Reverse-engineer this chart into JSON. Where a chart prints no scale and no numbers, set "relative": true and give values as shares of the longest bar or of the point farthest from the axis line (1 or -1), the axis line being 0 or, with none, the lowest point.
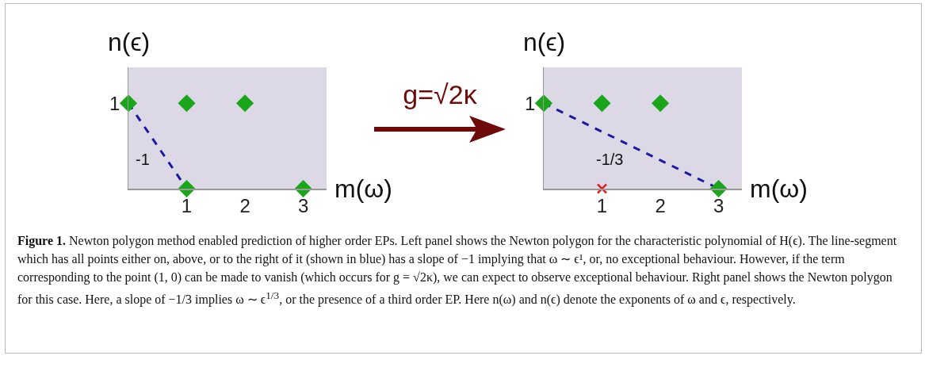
{
  "chart_data": [
    {
      "type": "scatter",
      "xlabel": "m(ω)",
      "ylabel": "n(ϵ)",
      "xlim": [
        0,
        3.4
      ],
      "relative": true,
      "xticks": [
        1,
        2,
        3
      ],
      "grid": false,
      "series": [
        {
          "type": "line",
          "x": [
            0,
            1
          ],
          "values": [
            1,
            0
          ],
          "color": "#1a1aa0",
          "line_style": "dashed",
          "marker": "none"
        },
        {
          "type": "scatter",
          "x": [
            0,
            1,
            2,
            1,
            3
          ],
          "values": [
            1,
            1,
            1,
            0,
            0
          ],
          "color": "#1aa51a",
          "marker": "diamond"
        }
      ],
      "annotations": [
        "1",
        "-1"
      ]
    },
    {
      "type": "other",
      "annotations": [
        "g=√2κ"
      ]
    },
    {
      "type": "scatter",
      "xlabel": "m(ω)",
      "ylabel": "n(ϵ)",
      "xlim": [
        0,
        3.4
      ],
      "relative": true,
      "xticks": [
        1,
        2,
        3
      ],
      "grid": false,
      "series": [
        {
          "type": "line",
          "x": [
            0,
            3
          ],
          "values": [
            1,
            0
          ],
          "color": "#1a1aa0",
          "line_style": "dashed",
          "marker": "none"
        },
        {
          "type": "scatter",
          "x": [
            0,
            1,
            2,
            3
          ],
          "values": [
            1,
            1,
            1,
            0
          ],
          "color": "#1aa51a",
          "marker": "diamond"
        },
        {
          "type": "scatter",
          "x": [
            1
          ],
          "values": [
            0
          ],
          "color": "#e02020",
          "marker": "cross"
        }
      ],
      "annotations": [
        "1",
        "-1/3"
      ]
    },
    {
      "type": "other",
      "annotations": [
        "Figure 1.",
        "Newton polygon method enabled prediction of higher order EPs. Left panel shows the Newton polygon for the characteristic polynomial of H(ϵ). The line-segment which has all points either on, above, or to the right of it (shown in blue) has a slope of −1 implying that ω ∼ ϵ¹, or, no exceptional behaviour. However, if the term corresponding to the point (1, 0) can be made to vanish (which occurs for g = √2κ), we can expect to observe exceptional behaviour. Right panel shows the Newton polygon for this case. Here, a slope of −1/3 implies ω ∼ ϵ$^{1/3}$, or the presence of a third order EP. Here n(ω) and n(ϵ) denote the exponents of ω and ϵ, respectively."
      ]
    }
  ]
}
